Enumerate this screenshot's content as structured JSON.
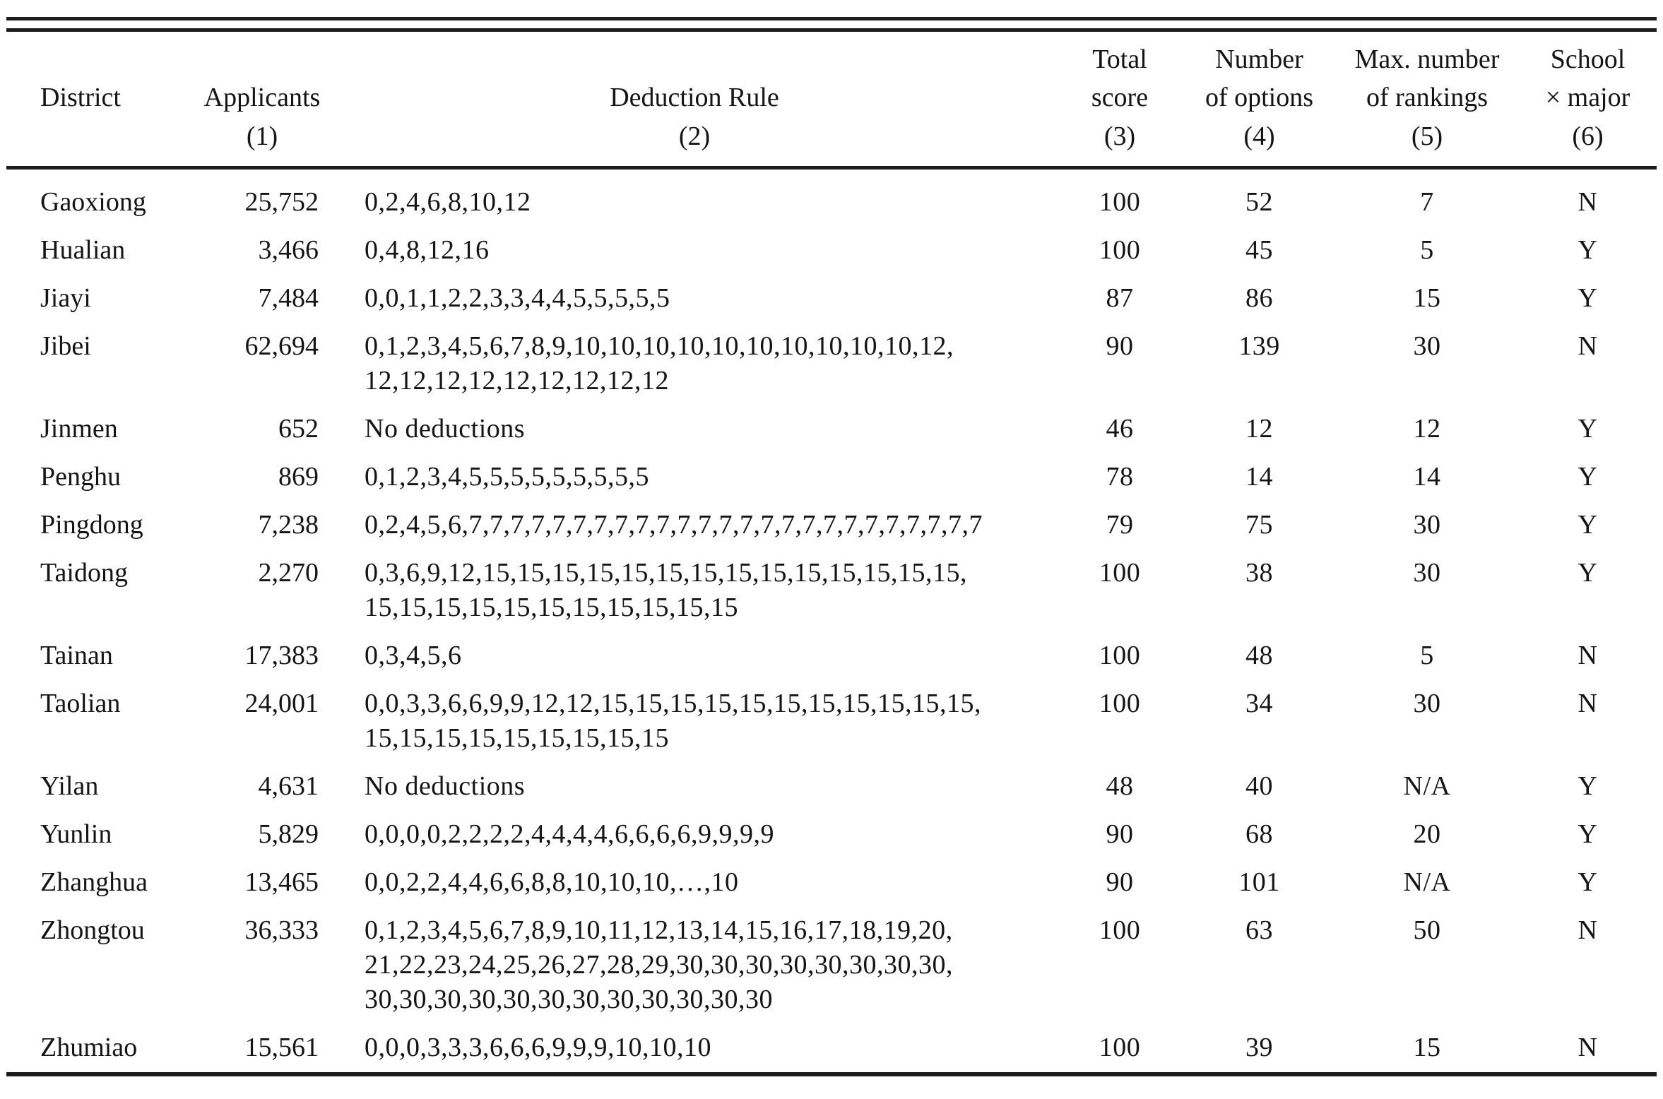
{
  "table": {
    "columns": [
      {
        "line1": "",
        "line2": "District",
        "num": ""
      },
      {
        "line1": "",
        "line2": "Applicants",
        "num": "(1)"
      },
      {
        "line1": "",
        "line2": "Deduction Rule",
        "num": "(2)"
      },
      {
        "line1": "Total",
        "line2": "score",
        "num": "(3)"
      },
      {
        "line1": "Number",
        "line2": "of options",
        "num": "(4)"
      },
      {
        "line1": "Max. number",
        "line2": "of rankings",
        "num": "(5)"
      },
      {
        "line1": "School",
        "line2": "× major",
        "num": "(6)"
      }
    ],
    "rows": [
      {
        "district": "Gaoxiong",
        "applicants": "25,752",
        "deduction_rule": [
          "0,2,4,6,8,10,12"
        ],
        "total_score": "100",
        "num_options": "52",
        "max_rankings": "7",
        "school_major": "N"
      },
      {
        "district": "Hualian",
        "applicants": "3,466",
        "deduction_rule": [
          "0,4,8,12,16"
        ],
        "total_score": "100",
        "num_options": "45",
        "max_rankings": "5",
        "school_major": "Y"
      },
      {
        "district": "Jiayi",
        "applicants": "7,484",
        "deduction_rule": [
          "0,0,1,1,2,2,3,3,4,4,5,5,5,5,5"
        ],
        "total_score": "87",
        "num_options": "86",
        "max_rankings": "15",
        "school_major": "Y"
      },
      {
        "district": "Jibei",
        "applicants": "62,694",
        "deduction_rule": [
          "0,1,2,3,4,5,6,7,8,9,10,10,10,10,10,10,10,10,10,10,12,",
          "12,12,12,12,12,12,12,12,12"
        ],
        "total_score": "90",
        "num_options": "139",
        "max_rankings": "30",
        "school_major": "N"
      },
      {
        "district": "Jinmen",
        "applicants": "652",
        "deduction_rule": [
          "No deductions"
        ],
        "total_score": "46",
        "num_options": "12",
        "max_rankings": "12",
        "school_major": "Y"
      },
      {
        "district": "Penghu",
        "applicants": "869",
        "deduction_rule": [
          "0,1,2,3,4,5,5,5,5,5,5,5,5,5"
        ],
        "total_score": "78",
        "num_options": "14",
        "max_rankings": "14",
        "school_major": "Y"
      },
      {
        "district": "Pingdong",
        "applicants": "7,238",
        "deduction_rule": [
          "0,2,4,5,6,7,7,7,7,7,7,7,7,7,7,7,7,7,7,7,7,7,7,7,7,7,7,7,7,7"
        ],
        "total_score": "79",
        "num_options": "75",
        "max_rankings": "30",
        "school_major": "Y"
      },
      {
        "district": "Taidong",
        "applicants": "2,270",
        "deduction_rule": [
          "0,3,6,9,12,15,15,15,15,15,15,15,15,15,15,15,15,15,15,",
          "15,15,15,15,15,15,15,15,15,15,15"
        ],
        "total_score": "100",
        "num_options": "38",
        "max_rankings": "30",
        "school_major": "Y"
      },
      {
        "district": "Tainan",
        "applicants": "17,383",
        "deduction_rule": [
          "0,3,4,5,6"
        ],
        "total_score": "100",
        "num_options": "48",
        "max_rankings": "5",
        "school_major": "N"
      },
      {
        "district": "Taolian",
        "applicants": "24,001",
        "deduction_rule": [
          "0,0,3,3,6,6,9,9,12,12,15,15,15,15,15,15,15,15,15,15,15,",
          "15,15,15,15,15,15,15,15,15"
        ],
        "total_score": "100",
        "num_options": "34",
        "max_rankings": "30",
        "school_major": "N"
      },
      {
        "district": "Yilan",
        "applicants": "4,631",
        "deduction_rule": [
          "No deductions"
        ],
        "total_score": "48",
        "num_options": "40",
        "max_rankings": "N/A",
        "school_major": "Y"
      },
      {
        "district": "Yunlin",
        "applicants": "5,829",
        "deduction_rule": [
          "0,0,0,0,2,2,2,2,4,4,4,4,6,6,6,6,9,9,9,9"
        ],
        "total_score": "90",
        "num_options": "68",
        "max_rankings": "20",
        "school_major": "Y"
      },
      {
        "district": "Zhanghua",
        "applicants": "13,465",
        "deduction_rule": [
          "0,0,2,2,4,4,6,6,8,8,10,10,10,…,10"
        ],
        "total_score": "90",
        "num_options": "101",
        "max_rankings": "N/A",
        "school_major": "Y"
      },
      {
        "district": "Zhongtou",
        "applicants": "36,333",
        "deduction_rule": [
          "0,1,2,3,4,5,6,7,8,9,10,11,12,13,14,15,16,17,18,19,20,",
          "21,22,23,24,25,26,27,28,29,30,30,30,30,30,30,30,30,",
          "30,30,30,30,30,30,30,30,30,30,30,30"
        ],
        "total_score": "100",
        "num_options": "63",
        "max_rankings": "50",
        "school_major": "N"
      },
      {
        "district": "Zhumiao",
        "applicants": "15,561",
        "deduction_rule": [
          "0,0,0,3,3,3,6,6,6,9,9,9,10,10,10"
        ],
        "total_score": "100",
        "num_options": "39",
        "max_rankings": "15",
        "school_major": "N"
      }
    ]
  }
}
